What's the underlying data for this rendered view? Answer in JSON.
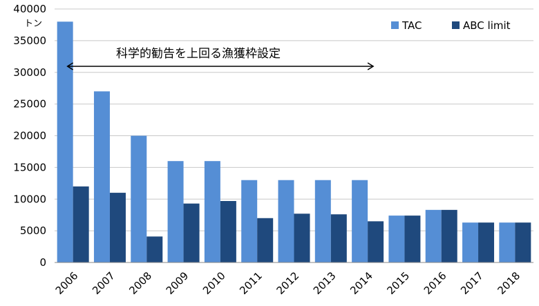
{
  "chart_data": {
    "type": "bar",
    "categories": [
      "2006",
      "2007",
      "2008",
      "2009",
      "2010",
      "2011",
      "2012",
      "2013",
      "2014",
      "2015",
      "2016",
      "2017",
      "2018"
    ],
    "series": [
      {
        "name": "TAC",
        "color": "#558ed5",
        "values": [
          38000,
          27000,
          20000,
          16000,
          16000,
          13000,
          13000,
          13000,
          13000,
          7400,
          8300,
          6300,
          6300
        ]
      },
      {
        "name": "ABC limit",
        "color": "#1f497d",
        "values": [
          12000,
          11000,
          4100,
          9300,
          9700,
          7000,
          7700,
          7600,
          6500,
          7400,
          8300,
          6300,
          6300
        ]
      }
    ],
    "ylim": [
      0,
      40000
    ],
    "yticks": [
      "0",
      "5000",
      "10000",
      "15000",
      "20000",
      "25000",
      "30000",
      "35000",
      "40000"
    ],
    "yunit": "トン",
    "grid": true,
    "legend_position": "top-right",
    "annotation": {
      "text": "科学的勧告を上回る漁獲枠設定",
      "arrow_from": "2006",
      "arrow_to": "2014"
    }
  }
}
